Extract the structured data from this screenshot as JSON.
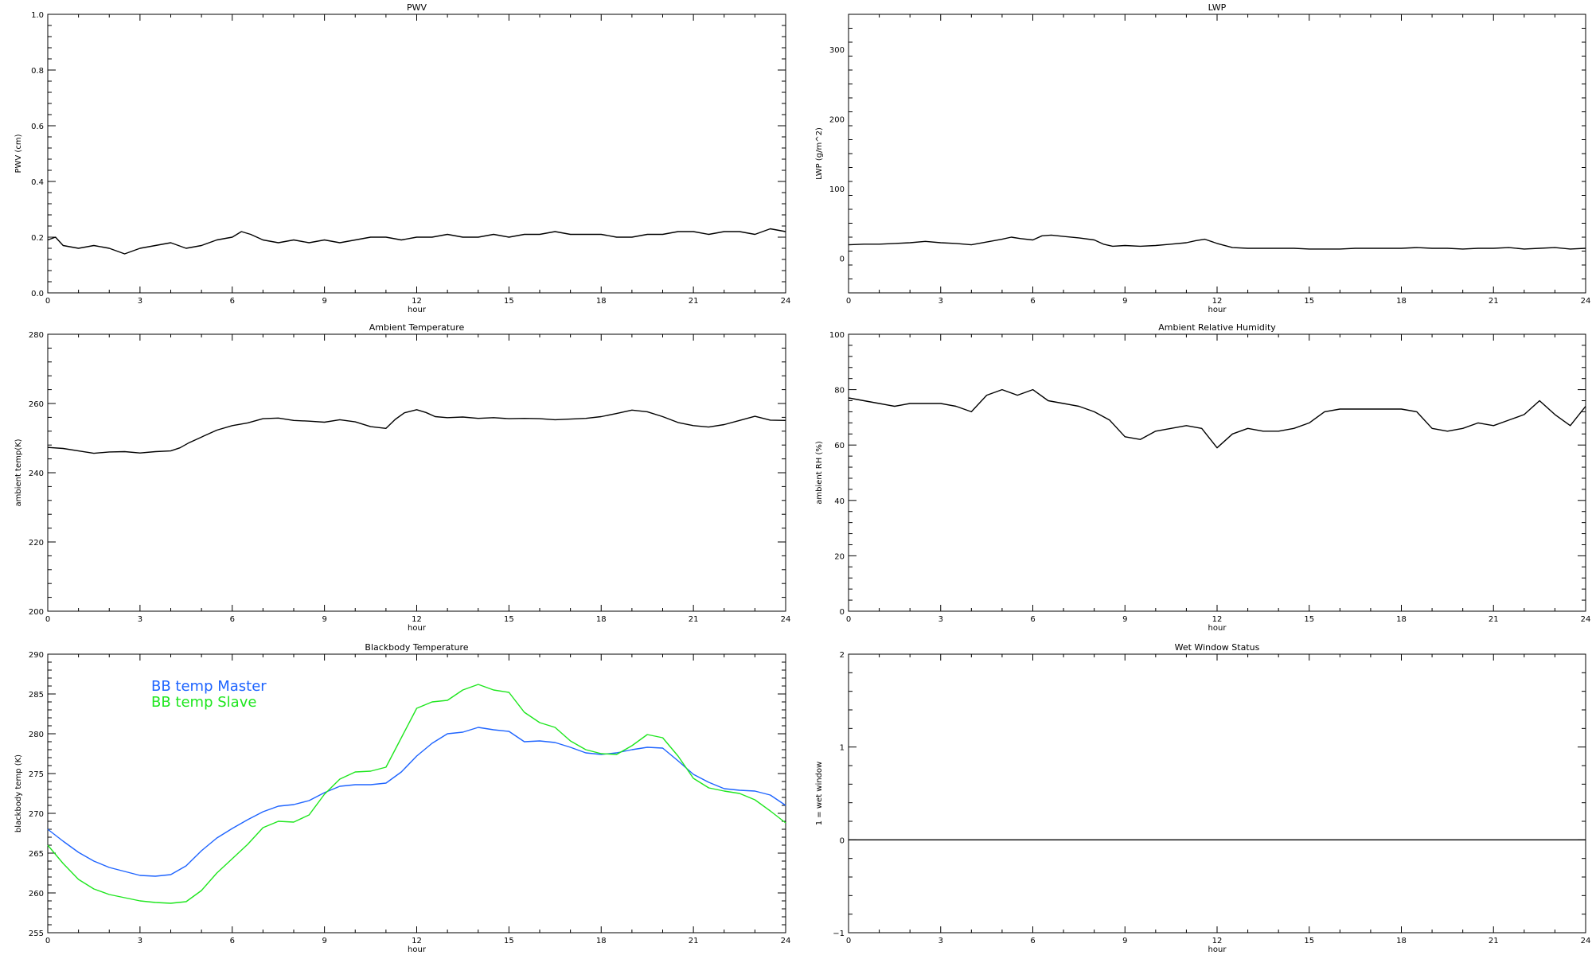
{
  "colors": {
    "black": "#000000",
    "master": "#1e64ff",
    "slave": "#1ee61e"
  },
  "chart_data": [
    {
      "id": "pwv",
      "type": "line",
      "title": "PWV",
      "xlabel": "hour",
      "ylabel": "PWV (cm)",
      "xlim": [
        0,
        24
      ],
      "ylim": [
        0.0,
        1.0
      ],
      "xticks": [
        0,
        3,
        6,
        9,
        12,
        15,
        18,
        21,
        24
      ],
      "yticks": [
        "0.0",
        "0.2",
        "0.4",
        "0.6",
        "0.8",
        "1.0"
      ],
      "ytick_values": [
        0.0,
        0.2,
        0.4,
        0.6,
        0.8,
        1.0
      ],
      "series": [
        {
          "color": "#000000",
          "x": [
            0,
            0.25,
            0.5,
            1,
            1.5,
            2,
            2.5,
            3,
            3.5,
            4,
            4.5,
            5,
            5.5,
            6,
            6.3,
            6.6,
            7,
            7.5,
            8,
            8.5,
            9,
            9.5,
            10,
            10.5,
            11,
            11.5,
            12,
            12.5,
            13,
            13.5,
            14,
            14.5,
            15,
            15.5,
            16,
            16.5,
            17,
            17.5,
            18,
            18.5,
            19,
            19.5,
            20,
            20.5,
            21,
            21.5,
            22,
            22.5,
            23,
            23.5,
            24
          ],
          "y": [
            0.19,
            0.2,
            0.17,
            0.16,
            0.17,
            0.16,
            0.14,
            0.16,
            0.17,
            0.18,
            0.16,
            0.17,
            0.19,
            0.2,
            0.22,
            0.21,
            0.19,
            0.18,
            0.19,
            0.18,
            0.19,
            0.18,
            0.19,
            0.2,
            0.2,
            0.19,
            0.2,
            0.2,
            0.21,
            0.2,
            0.2,
            0.21,
            0.2,
            0.21,
            0.21,
            0.22,
            0.21,
            0.21,
            0.21,
            0.2,
            0.2,
            0.21,
            0.21,
            0.22,
            0.22,
            0.21,
            0.22,
            0.22,
            0.21,
            0.23,
            0.22
          ]
        }
      ]
    },
    {
      "id": "lwp",
      "type": "line",
      "title": "LWP",
      "xlabel": "hour",
      "ylabel": "LWP (g/m^2)",
      "xlim": [
        0,
        24
      ],
      "ylim": [
        -50,
        350
      ],
      "xticks": [
        0,
        3,
        6,
        9,
        12,
        15,
        18,
        21,
        24
      ],
      "yticks": [
        "0",
        "100",
        "200",
        "300"
      ],
      "ytick_values": [
        0,
        100,
        200,
        300
      ],
      "series": [
        {
          "color": "#000000",
          "x": [
            0,
            0.5,
            1,
            1.5,
            2,
            2.5,
            3,
            3.5,
            4,
            4.5,
            5,
            5.3,
            5.6,
            6,
            6.3,
            6.6,
            7,
            7.5,
            8,
            8.3,
            8.6,
            9,
            9.5,
            10,
            10.5,
            11,
            11.3,
            11.6,
            12,
            12.5,
            13,
            13.5,
            14,
            14.5,
            15,
            15.5,
            16,
            16.5,
            17,
            17.5,
            18,
            18.5,
            19,
            19.5,
            20,
            20.5,
            21,
            21.5,
            22,
            22.5,
            23,
            23.5,
            24
          ],
          "y": [
            19,
            20,
            20,
            21,
            22,
            24,
            22,
            21,
            19,
            23,
            27,
            30,
            28,
            26,
            32,
            33,
            31,
            29,
            26,
            20,
            17,
            18,
            17,
            18,
            20,
            22,
            25,
            27,
            21,
            15,
            14,
            14,
            14,
            14,
            13,
            13,
            13,
            14,
            14,
            14,
            14,
            15,
            14,
            14,
            13,
            14,
            14,
            15,
            13,
            14,
            15,
            13,
            14
          ]
        }
      ]
    },
    {
      "id": "ambient-temp",
      "type": "line",
      "title": "Ambient Temperature",
      "xlabel": "hour",
      "ylabel": "ambient temp(K)",
      "xlim": [
        0,
        24
      ],
      "ylim": [
        200,
        280
      ],
      "xticks": [
        0,
        3,
        6,
        9,
        12,
        15,
        18,
        21,
        24
      ],
      "yticks": [
        "200",
        "220",
        "240",
        "260",
        "280"
      ],
      "ytick_values": [
        200,
        220,
        240,
        260,
        280
      ],
      "series": [
        {
          "color": "#000000",
          "x": [
            0,
            0.5,
            1,
            1.5,
            2,
            2.5,
            3,
            3.5,
            4,
            4.3,
            4.6,
            5,
            5.5,
            6,
            6.5,
            7,
            7.5,
            8,
            8.5,
            9,
            9.5,
            10,
            10.5,
            11,
            11.3,
            11.6,
            12,
            12.3,
            12.6,
            13,
            13.5,
            14,
            14.5,
            15,
            15.5,
            16,
            16.5,
            17,
            17.5,
            18,
            18.5,
            19,
            19.5,
            20,
            20.5,
            21,
            21.5,
            22,
            22.5,
            23,
            23.5,
            24
          ],
          "y": [
            247.3,
            247,
            246.3,
            245.6,
            246,
            246.1,
            245.7,
            246.1,
            246.3,
            247.2,
            248.7,
            250.3,
            252.3,
            253.6,
            254.4,
            255.6,
            255.8,
            255.1,
            254.9,
            254.6,
            255.3,
            254.7,
            253.3,
            252.8,
            255.4,
            257.3,
            258.2,
            257.4,
            256.2,
            255.9,
            256.1,
            255.7,
            255.9,
            255.6,
            255.7,
            255.6,
            255.3,
            255.5,
            255.7,
            256.2,
            257.1,
            258.1,
            257.6,
            256.2,
            254.5,
            253.6,
            253.2,
            253.9,
            255.1,
            256.3,
            255.2,
            255.1
          ]
        }
      ]
    },
    {
      "id": "ambient-rh",
      "type": "line",
      "title": "Ambient Relative Humidity",
      "xlabel": "hour",
      "ylabel": "ambient RH (%)",
      "xlim": [
        0,
        24
      ],
      "ylim": [
        0,
        100
      ],
      "xticks": [
        0,
        3,
        6,
        9,
        12,
        15,
        18,
        21,
        24
      ],
      "yticks": [
        "0",
        "20",
        "40",
        "60",
        "80",
        "100"
      ],
      "ytick_values": [
        0,
        20,
        40,
        60,
        80,
        100
      ],
      "series": [
        {
          "color": "#000000",
          "x": [
            0,
            0.5,
            1,
            1.5,
            2,
            2.5,
            3,
            3.5,
            4,
            4.5,
            5,
            5.5,
            6,
            6.5,
            7,
            7.5,
            8,
            8.5,
            9,
            9.5,
            10,
            10.5,
            11,
            11.5,
            12,
            12.5,
            13,
            13.5,
            14,
            14.5,
            15,
            15.5,
            16,
            16.5,
            17,
            17.5,
            18,
            18.5,
            19,
            19.5,
            20,
            20.5,
            21,
            21.5,
            22,
            22.5,
            23,
            23.5,
            24
          ],
          "y": [
            77,
            76,
            75,
            74,
            75,
            75,
            75,
            74,
            72,
            78,
            80,
            78,
            80,
            76,
            75,
            74,
            72,
            69,
            63,
            62,
            65,
            66,
            67,
            66,
            59,
            64,
            66,
            65,
            65,
            66,
            68,
            72,
            73,
            73,
            73,
            73,
            73,
            72,
            66,
            65,
            66,
            68,
            67,
            69,
            71,
            76,
            71,
            67,
            74
          ]
        }
      ]
    },
    {
      "id": "blackbody-temp",
      "type": "line",
      "title": "Blackbody Temperature",
      "xlabel": "hour",
      "ylabel": "blackbody temp (K)",
      "xlim": [
        0,
        24
      ],
      "ylim": [
        255,
        290
      ],
      "xticks": [
        0,
        3,
        6,
        9,
        12,
        15,
        18,
        21,
        24
      ],
      "yticks": [
        "255",
        "260",
        "265",
        "270",
        "275",
        "280",
        "285",
        "290"
      ],
      "ytick_values": [
        255,
        260,
        265,
        270,
        275,
        280,
        285,
        290
      ],
      "legend": "top-left",
      "series": [
        {
          "name": "BB temp Master",
          "color": "#1e64ff",
          "x": [
            0,
            0.5,
            1,
            1.5,
            2,
            2.5,
            3,
            3.5,
            4,
            4.5,
            5,
            5.5,
            6,
            6.5,
            7,
            7.5,
            8,
            8.5,
            9,
            9.5,
            10,
            10.5,
            11,
            11.5,
            12,
            12.5,
            13,
            13.5,
            14,
            14.5,
            15,
            15.5,
            16,
            16.5,
            17,
            17.5,
            18,
            18.5,
            19,
            19.5,
            20,
            20.5,
            21,
            21.5,
            22,
            22.5,
            23,
            23.5,
            24
          ],
          "y": [
            268,
            266.5,
            265.1,
            264,
            263.2,
            262.7,
            262.2,
            262.1,
            262.3,
            263.4,
            265.3,
            266.9,
            268.1,
            269.2,
            270.2,
            270.9,
            271.1,
            271.6,
            272.6,
            273.4,
            273.6,
            273.6,
            273.8,
            275.2,
            277.2,
            278.8,
            280,
            280.2,
            280.8,
            280.5,
            280.3,
            279,
            279.1,
            278.9,
            278.3,
            277.6,
            277.4,
            277.6,
            278,
            278.3,
            278.2,
            276.6,
            274.9,
            273.9,
            273.1,
            272.9,
            272.8,
            272.3,
            271
          ]
        },
        {
          "name": "BB temp Slave",
          "color": "#1ee61e",
          "x": [
            0,
            0.5,
            1,
            1.5,
            2,
            2.5,
            3,
            3.5,
            4,
            4.5,
            5,
            5.5,
            6,
            6.5,
            7,
            7.5,
            8,
            8.5,
            9,
            9.5,
            10,
            10.5,
            11,
            11.5,
            12,
            12.5,
            13,
            13.5,
            14,
            14.5,
            15,
            15.5,
            16,
            16.5,
            17,
            17.5,
            18,
            18.5,
            19,
            19.5,
            20,
            20.5,
            21,
            21.5,
            22,
            22.5,
            23,
            23.5,
            24
          ],
          "y": [
            266,
            263.7,
            261.7,
            260.5,
            259.8,
            259.4,
            259,
            258.8,
            258.7,
            258.9,
            260.3,
            262.5,
            264.3,
            266.1,
            268.2,
            269,
            268.9,
            269.8,
            272.4,
            274.3,
            275.2,
            275.3,
            275.8,
            279.5,
            283.2,
            284,
            284.2,
            285.5,
            286.2,
            285.5,
            285.2,
            282.7,
            281.4,
            280.8,
            279.1,
            278,
            277.5,
            277.4,
            278.5,
            279.9,
            279.5,
            277.2,
            274.4,
            273.2,
            272.8,
            272.5,
            271.7,
            270.3,
            268.8
          ]
        }
      ]
    },
    {
      "id": "wet-window",
      "type": "line",
      "title": "Wet Window Status",
      "xlabel": "hour",
      "ylabel": "1 = wet window",
      "xlim": [
        0,
        24
      ],
      "ylim": [
        -1,
        2
      ],
      "xticks": [
        0,
        3,
        6,
        9,
        12,
        15,
        18,
        21,
        24
      ],
      "yticks": [
        "−1",
        "0",
        "1",
        "2"
      ],
      "ytick_values": [
        -1,
        0,
        1,
        2
      ],
      "series": [
        {
          "color": "#000000",
          "x": [
            0,
            24
          ],
          "y": [
            0,
            0
          ]
        }
      ]
    }
  ]
}
